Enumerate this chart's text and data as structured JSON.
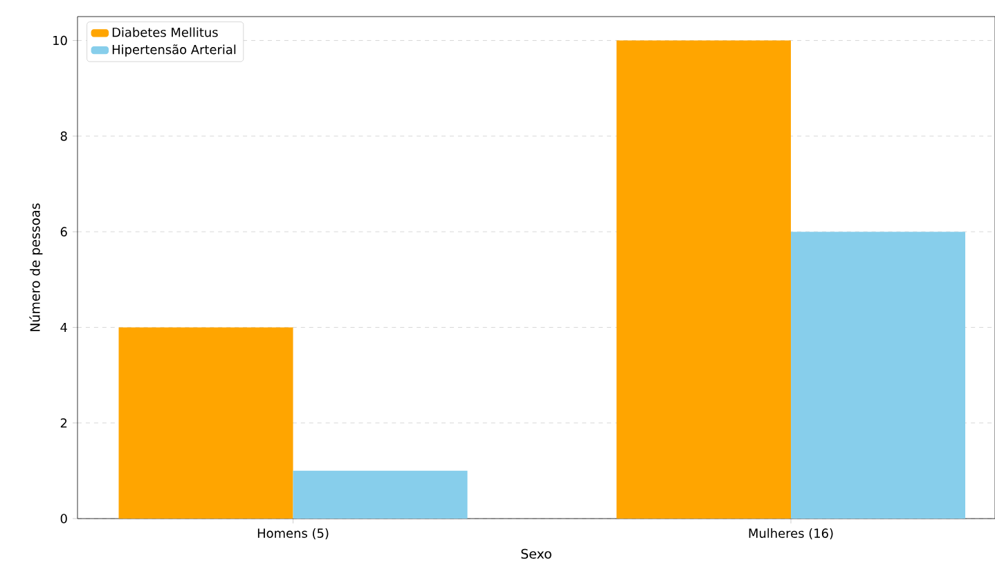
{
  "chart_data": {
    "type": "bar",
    "xlabel": "Sexo",
    "ylabel": "Número de pessoas",
    "categories": [
      "Homens (5)",
      "Mulheres (16)"
    ],
    "series": [
      {
        "name": "Diabetes Mellitus",
        "color": "#ffa500",
        "values": [
          4,
          10
        ]
      },
      {
        "name": "Hipertensão Arterial",
        "color": "#87ceeb",
        "values": [
          1,
          6
        ]
      }
    ],
    "ylim": [
      0,
      10.5
    ],
    "yticks": [
      0,
      2,
      4,
      6,
      8,
      10
    ],
    "grid": "y",
    "legend": "top left"
  }
}
